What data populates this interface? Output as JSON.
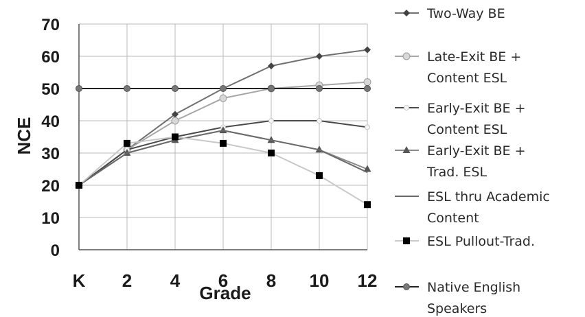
{
  "chart_data": {
    "type": "line",
    "categories": [
      "K",
      "2",
      "4",
      "6",
      "8",
      "10",
      "12"
    ],
    "xlabel": "Grade",
    "ylabel": "NCE",
    "ylim": [
      0,
      70
    ],
    "yticks": [
      0,
      10,
      20,
      30,
      40,
      50,
      60,
      70
    ],
    "grid": true,
    "legend_position": "right",
    "series": [
      {
        "name": "Two-Way BE",
        "values": [
          20,
          31,
          42,
          50,
          57,
          60,
          62
        ],
        "color": "#707070",
        "marker": "diamond"
      },
      {
        "name": "Late-Exit BE + Content ESL",
        "values": [
          20,
          31,
          40,
          47,
          50,
          51,
          52
        ],
        "color": "#a6a6a6",
        "marker": "circle-light"
      },
      {
        "name": "Early-Exit BE + Content ESL",
        "values": [
          20,
          31,
          35,
          38,
          40,
          40,
          38
        ],
        "color": "#4a4a4a",
        "marker": "dot-white"
      },
      {
        "name": "Early-Exit BE + Trad. ESL",
        "values": [
          20,
          30,
          34,
          37,
          34,
          31,
          25
        ],
        "color": "#8a8a8a",
        "marker": "triangle"
      },
      {
        "name": "ESL thru Academic Content",
        "values": [
          20,
          30,
          34,
          37,
          34,
          31,
          24
        ],
        "color": "#6a6a6a",
        "marker": "none"
      },
      {
        "name": "ESL Pullout-Trad.",
        "values": [
          20,
          33,
          35,
          33,
          30,
          23,
          14
        ],
        "color": "#c8c8c8",
        "marker": "square"
      },
      {
        "name": "Native English Speakers",
        "values": [
          50,
          50,
          50,
          50,
          50,
          50,
          50
        ],
        "color": "#222222",
        "marker": "circle"
      }
    ],
    "legend_labels": [
      [
        "Two-Way BE"
      ],
      [
        "Late-Exit BE +",
        "Content ESL"
      ],
      [
        "Early-Exit BE +",
        "Content ESL"
      ],
      [
        "Early-Exit BE +",
        "Trad. ESL"
      ],
      [
        "ESL thru Academic",
        "Content"
      ],
      [
        "ESL Pullout-Trad."
      ],
      [
        "Native English",
        "Speakers"
      ]
    ]
  }
}
